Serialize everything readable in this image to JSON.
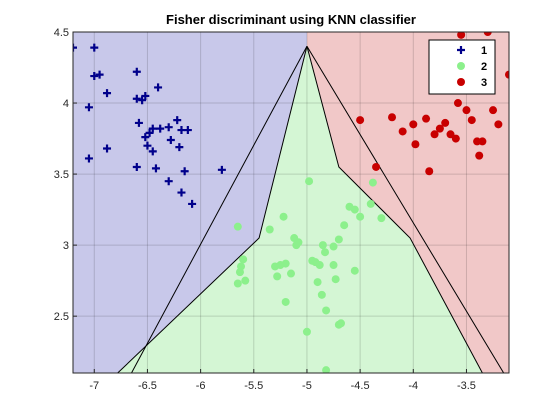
{
  "chart_data": {
    "type": "scatter",
    "title": "Fisher discriminant using KNN classifier",
    "xlabel": "",
    "ylabel": "",
    "xlim": [
      -7.2,
      -3.1
    ],
    "ylim": [
      2.1,
      4.5
    ],
    "xticks": [
      -7,
      -6.5,
      -6,
      -5.5,
      -5,
      -4.5,
      -4,
      -3.5
    ],
    "yticks": [
      2.5,
      3,
      3.5,
      4,
      4.5
    ],
    "xtick_labels": [
      "-7",
      "-6.5",
      "-6",
      "-5.5",
      "-5",
      "-4.5",
      "-4",
      "-3.5"
    ],
    "ytick_labels": [
      "2.5",
      "3",
      "3.5",
      "4",
      "4.5"
    ],
    "grid": true,
    "legend_position": "top-right",
    "regions": [
      {
        "class": "1",
        "color": "#c8c8ea",
        "polygon": [
          [
            -7.2,
            4.5
          ],
          [
            -5.0,
            4.5
          ],
          [
            -5.0,
            4.4
          ],
          [
            -5.45,
            3.05
          ],
          [
            -6.78,
            2.1
          ],
          [
            -7.2,
            2.1
          ]
        ]
      },
      {
        "class": "3",
        "color": "#f1c8c8",
        "polygon": [
          [
            -5.0,
            4.5
          ],
          [
            -3.1,
            4.5
          ],
          [
            -3.1,
            2.1
          ],
          [
            -3.35,
            2.1
          ],
          [
            -4.03,
            3.05
          ],
          [
            -4.7,
            3.55
          ],
          [
            -5.0,
            4.4
          ]
        ]
      },
      {
        "class": "2",
        "color": "#d4f6d4",
        "polygon": [
          [
            -5.0,
            4.4
          ],
          [
            -5.45,
            3.05
          ],
          [
            -6.78,
            2.1
          ],
          [
            -3.35,
            2.1
          ],
          [
            -4.03,
            3.05
          ],
          [
            -4.7,
            3.55
          ]
        ]
      }
    ],
    "boundary_lines": [
      {
        "color": "#000000",
        "points": [
          [
            -5.0,
            4.4
          ],
          [
            -5.45,
            3.05
          ],
          [
            -6.78,
            2.1
          ]
        ]
      },
      {
        "color": "#000000",
        "points": [
          [
            -5.0,
            4.4
          ],
          [
            -4.7,
            3.55
          ],
          [
            -4.03,
            3.05
          ],
          [
            -3.35,
            2.1
          ]
        ]
      },
      {
        "color": "#000000",
        "points": [
          [
            -5.0,
            4.4
          ],
          [
            -6.65,
            2.1
          ]
        ]
      },
      {
        "color": "#000000",
        "points": [
          [
            -5.0,
            4.4
          ],
          [
            -3.15,
            2.1
          ]
        ]
      }
    ],
    "series": [
      {
        "name": "1",
        "marker": "plus",
        "color": "#00008b",
        "points": [
          [
            -7.2,
            4.39
          ],
          [
            -7.0,
            4.39
          ],
          [
            -7.0,
            4.19
          ],
          [
            -6.95,
            4.2
          ],
          [
            -7.05,
            3.97
          ],
          [
            -7.05,
            3.61
          ],
          [
            -6.88,
            3.68
          ],
          [
            -6.88,
            4.07
          ],
          [
            -6.6,
            4.22
          ],
          [
            -6.6,
            4.03
          ],
          [
            -6.55,
            4.02
          ],
          [
            -6.52,
            4.05
          ],
          [
            -6.58,
            3.86
          ],
          [
            -6.52,
            3.76
          ],
          [
            -6.5,
            3.7
          ],
          [
            -6.48,
            3.79
          ],
          [
            -6.45,
            3.82
          ],
          [
            -6.45,
            3.66
          ],
          [
            -6.4,
            4.11
          ],
          [
            -6.38,
            3.82
          ],
          [
            -6.3,
            3.83
          ],
          [
            -6.28,
            3.74
          ],
          [
            -6.22,
            3.88
          ],
          [
            -6.2,
            3.69
          ],
          [
            -6.18,
            3.81
          ],
          [
            -6.12,
            3.81
          ],
          [
            -6.15,
            3.52
          ],
          [
            -6.08,
            3.29
          ],
          [
            -6.3,
            3.45
          ],
          [
            -6.18,
            3.37
          ],
          [
            -6.42,
            3.54
          ],
          [
            -6.6,
            3.55
          ],
          [
            -5.8,
            3.53
          ]
        ]
      },
      {
        "name": "2",
        "marker": "circle",
        "color": "#8cf08c",
        "points": [
          [
            -5.65,
            3.13
          ],
          [
            -5.62,
            2.85
          ],
          [
            -5.6,
            2.9
          ],
          [
            -5.63,
            2.81
          ],
          [
            -5.65,
            2.73
          ],
          [
            -5.58,
            2.75
          ],
          [
            -5.35,
            3.11
          ],
          [
            -5.3,
            2.85
          ],
          [
            -5.28,
            2.78
          ],
          [
            -5.25,
            2.86
          ],
          [
            -5.2,
            2.87
          ],
          [
            -5.15,
            2.8
          ],
          [
            -5.12,
            3.05
          ],
          [
            -5.1,
            3.0
          ],
          [
            -5.08,
            3.02
          ],
          [
            -5.22,
            3.2
          ],
          [
            -4.98,
            3.45
          ],
          [
            -4.95,
            2.89
          ],
          [
            -4.92,
            2.88
          ],
          [
            -4.88,
            2.86
          ],
          [
            -4.9,
            2.74
          ],
          [
            -4.86,
            2.65
          ],
          [
            -4.85,
            3.0
          ],
          [
            -4.83,
            2.95
          ],
          [
            -4.75,
            2.99
          ],
          [
            -4.75,
            2.86
          ],
          [
            -4.73,
            2.76
          ],
          [
            -4.7,
            3.04
          ],
          [
            -4.65,
            3.14
          ],
          [
            -4.6,
            3.27
          ],
          [
            -4.55,
            3.25
          ],
          [
            -4.5,
            3.2
          ],
          [
            -4.4,
            3.29
          ],
          [
            -4.38,
            3.44
          ],
          [
            -4.3,
            3.19
          ],
          [
            -4.55,
            2.82
          ],
          [
            -4.68,
            2.45
          ],
          [
            -4.7,
            2.44
          ],
          [
            -4.82,
            2.54
          ],
          [
            -5.0,
            2.39
          ],
          [
            -4.82,
            2.12
          ],
          [
            -5.2,
            2.6
          ]
        ]
      },
      {
        "name": "3",
        "marker": "circle",
        "color": "#c80000",
        "points": [
          [
            -4.5,
            3.88
          ],
          [
            -4.2,
            3.9
          ],
          [
            -4.1,
            3.8
          ],
          [
            -4.0,
            3.85
          ],
          [
            -3.98,
            3.71
          ],
          [
            -3.88,
            3.89
          ],
          [
            -3.8,
            3.78
          ],
          [
            -3.75,
            3.82
          ],
          [
            -3.7,
            3.86
          ],
          [
            -3.65,
            3.78
          ],
          [
            -3.6,
            3.75
          ],
          [
            -3.58,
            4.0
          ],
          [
            -3.55,
            4.48
          ],
          [
            -3.5,
            3.95
          ],
          [
            -3.45,
            3.88
          ],
          [
            -3.4,
            3.73
          ],
          [
            -3.38,
            3.63
          ],
          [
            -3.35,
            3.73
          ],
          [
            -3.3,
            4.5
          ],
          [
            -3.25,
            3.95
          ],
          [
            -3.2,
            3.85
          ],
          [
            -3.15,
            4.6
          ],
          [
            -3.1,
            4.2
          ],
          [
            -4.35,
            3.55
          ],
          [
            -3.85,
            3.52
          ]
        ]
      }
    ]
  }
}
